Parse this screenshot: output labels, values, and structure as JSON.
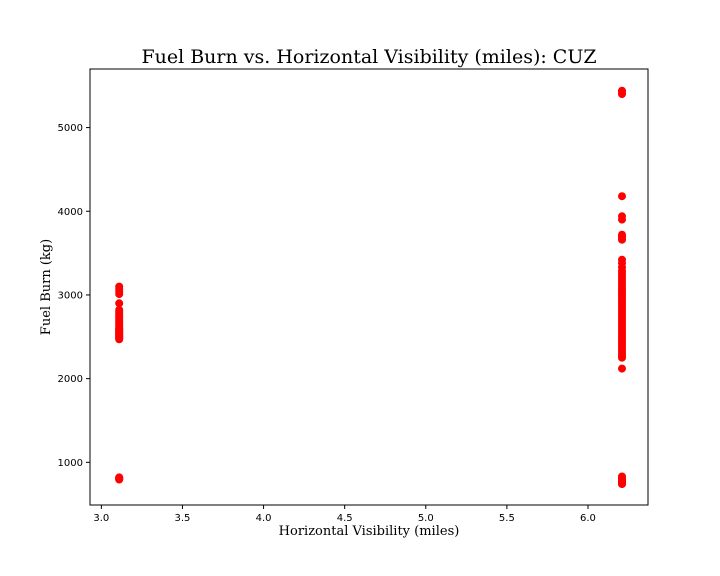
{
  "chart_data": {
    "type": "scatter",
    "title": "Fuel Burn vs. Horizontal Visibility (miles): CUZ",
    "xlabel": "Horizontal Visibility (miles)",
    "ylabel": "Fuel Burn (kg)",
    "xlim": [
      2.93,
      6.37
    ],
    "ylim": [
      490,
      5700
    ],
    "xticks": [
      3.0,
      3.5,
      4.0,
      4.5,
      5.0,
      5.5,
      6.0
    ],
    "xtick_labels": [
      "3.0",
      "3.5",
      "4.0",
      "4.5",
      "5.0",
      "5.5",
      "6.0"
    ],
    "yticks": [
      1000,
      2000,
      3000,
      4000,
      5000
    ],
    "ytick_labels": [
      "1000",
      "2000",
      "3000",
      "4000",
      "5000"
    ],
    "grid": false,
    "marker_color": "#ff0000",
    "series": [
      {
        "x": [
          3.11,
          3.11,
          3.11,
          3.11,
          3.11,
          3.11,
          3.11,
          3.11,
          3.11,
          3.11,
          3.11,
          3.11,
          3.11,
          3.11,
          3.11,
          3.11,
          3.11,
          3.11,
          3.11,
          3.11,
          3.11,
          3.11,
          3.11,
          3.11,
          3.11,
          3.11,
          3.11,
          3.11,
          3.11,
          3.11,
          3.11,
          3.11,
          3.11,
          3.11,
          3.11
        ],
        "y": [
          3100,
          3070,
          3040,
          3010,
          2900,
          2820,
          2800,
          2780,
          2760,
          2740,
          2720,
          2700,
          2680,
          2660,
          2640,
          2620,
          2600,
          2590,
          2580,
          2570,
          2560,
          2550,
          2540,
          2530,
          2520,
          2510,
          2500,
          2490,
          2480,
          2470,
          820,
          815,
          805,
          800,
          795
        ]
      },
      {
        "x": [
          6.21,
          6.21,
          6.21,
          6.21,
          6.21,
          6.21,
          6.21,
          6.21,
          6.21,
          6.21,
          6.21,
          6.21,
          6.21,
          6.21,
          6.21,
          6.21,
          6.21,
          6.21,
          6.21,
          6.21,
          6.21,
          6.21,
          6.21,
          6.21,
          6.21,
          6.21,
          6.21,
          6.21,
          6.21,
          6.21,
          6.21,
          6.21,
          6.21,
          6.21,
          6.21,
          6.21,
          6.21,
          6.21,
          6.21,
          6.21,
          6.21,
          6.21,
          6.21,
          6.21,
          6.21,
          6.21,
          6.21,
          6.21,
          6.21,
          6.21,
          6.21,
          6.21,
          6.21,
          6.21,
          6.21,
          6.21,
          6.21,
          6.21,
          6.21,
          6.21
        ],
        "y": [
          5440,
          5420,
          5400,
          4180,
          3940,
          3900,
          3720,
          3700,
          3680,
          3660,
          3420,
          3380,
          3330,
          3290,
          3260,
          3230,
          3200,
          3170,
          3140,
          3110,
          3080,
          3050,
          3020,
          2990,
          2960,
          2930,
          2900,
          2870,
          2840,
          2810,
          2780,
          2750,
          2720,
          2690,
          2660,
          2630,
          2600,
          2570,
          2540,
          2510,
          2480,
          2450,
          2420,
          2390,
          2360,
          2330,
          2300,
          2270,
          2250,
          2120,
          830,
          810,
          795,
          785,
          775,
          765,
          755,
          750,
          745,
          740
        ]
      }
    ]
  }
}
